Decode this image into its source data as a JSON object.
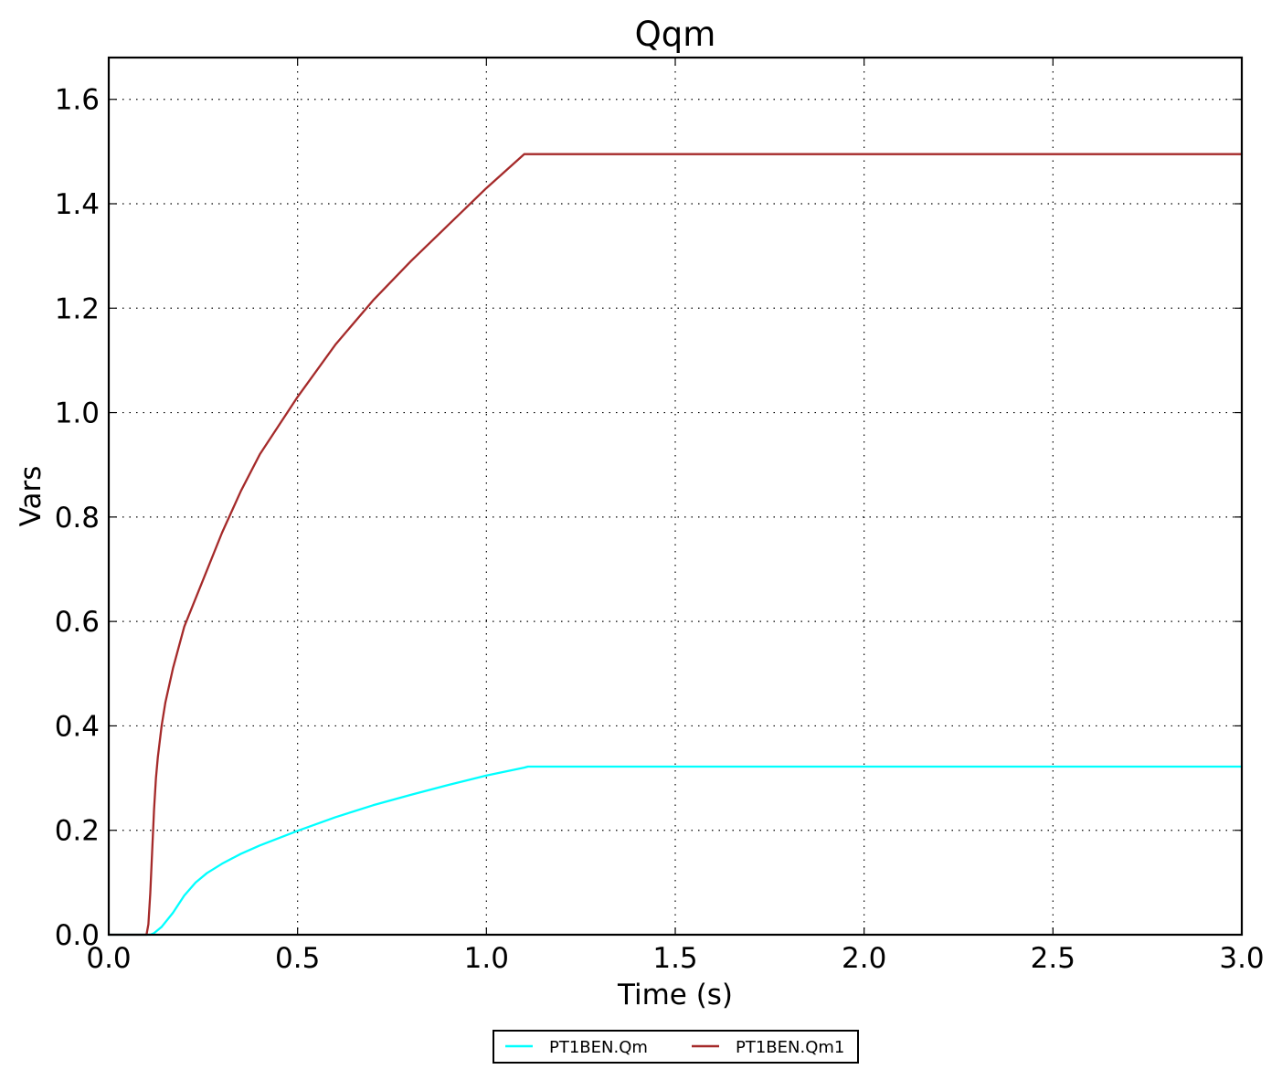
{
  "chart_data": {
    "type": "line",
    "title": "Qqm",
    "xlabel": "Time (s)",
    "ylabel": "Vars",
    "xlim": [
      0.0,
      3.0
    ],
    "ylim": [
      0.0,
      1.68
    ],
    "xticks": [
      0.0,
      0.5,
      1.0,
      1.5,
      2.0,
      2.5,
      3.0
    ],
    "xtick_labels": [
      "0.0",
      "0.5",
      "1.0",
      "1.5",
      "2.0",
      "2.5",
      "3.0"
    ],
    "yticks": [
      0.0,
      0.2,
      0.4,
      0.6,
      0.8,
      1.0,
      1.2,
      1.4,
      1.6
    ],
    "ytick_labels": [
      "0.0",
      "0.2",
      "0.4",
      "0.6",
      "0.8",
      "1.0",
      "1.2",
      "1.4",
      "1.6"
    ],
    "grid": true,
    "legend_position": "bottom-center",
    "series": [
      {
        "name": "PT1BEN.Qm",
        "color": "#00ffff",
        "x": [
          0.0,
          0.11,
          0.12,
          0.14,
          0.17,
          0.2,
          0.23,
          0.26,
          0.3,
          0.35,
          0.4,
          0.5,
          0.6,
          0.7,
          0.8,
          0.9,
          1.0,
          1.1,
          1.11,
          1.2,
          1.5,
          2.0,
          2.5,
          3.0
        ],
        "y": [
          0.0,
          0.0,
          0.003,
          0.015,
          0.042,
          0.075,
          0.1,
          0.118,
          0.136,
          0.155,
          0.171,
          0.199,
          0.225,
          0.248,
          0.268,
          0.287,
          0.305,
          0.32,
          0.322,
          0.322,
          0.322,
          0.322,
          0.322,
          0.322
        ]
      },
      {
        "name": "PT1BEN.Qm1",
        "color": "#a52a2a",
        "x": [
          0.0,
          0.1,
          0.105,
          0.11,
          0.115,
          0.12,
          0.125,
          0.13,
          0.14,
          0.15,
          0.17,
          0.2,
          0.25,
          0.3,
          0.35,
          0.4,
          0.5,
          0.6,
          0.7,
          0.8,
          0.9,
          1.0,
          1.1,
          1.2,
          1.5,
          2.0,
          2.5,
          3.0
        ],
        "y": [
          0.0,
          0.0,
          0.02,
          0.08,
          0.16,
          0.24,
          0.3,
          0.34,
          0.4,
          0.445,
          0.51,
          0.59,
          0.68,
          0.77,
          0.85,
          0.92,
          1.03,
          1.13,
          1.215,
          1.29,
          1.36,
          1.43,
          1.495,
          1.495,
          1.495,
          1.495,
          1.495,
          1.495
        ]
      }
    ]
  }
}
